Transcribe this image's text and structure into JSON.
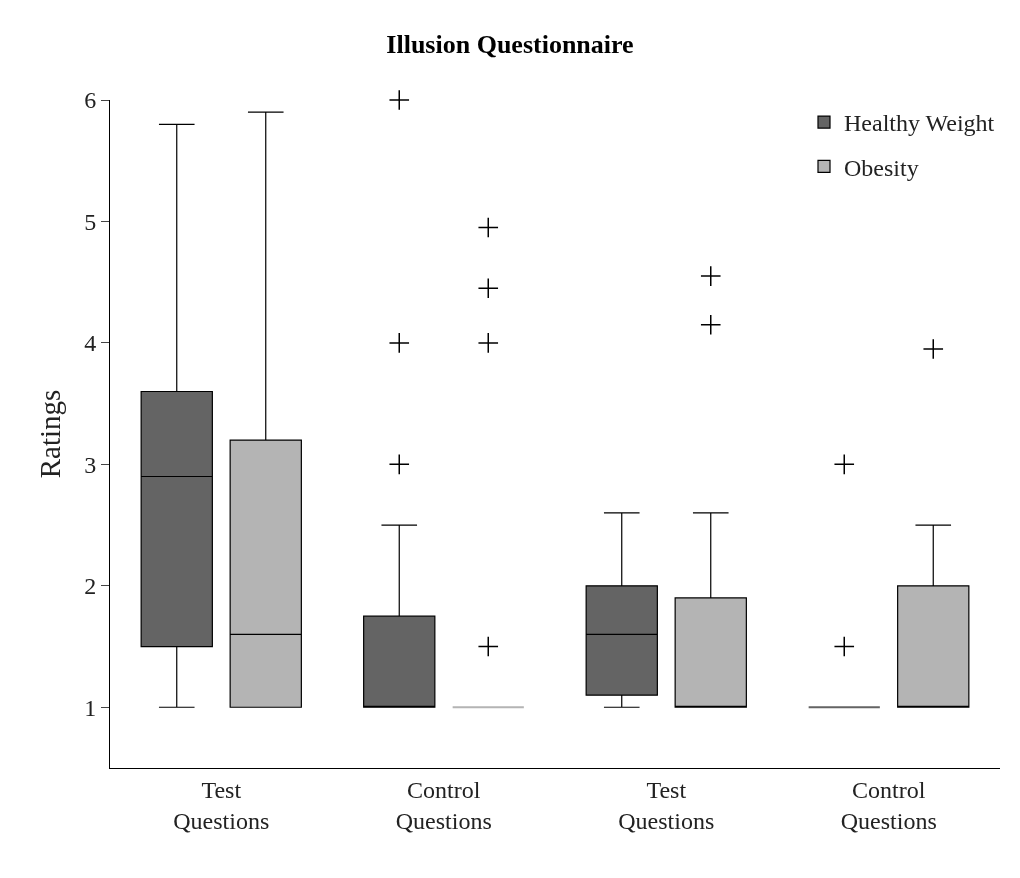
{
  "chart_data": {
    "type": "box",
    "title": "Illusion Questionnaire",
    "ylabel": "Ratings",
    "categories": [
      "Test\nQuestions",
      "Control\nQuestions",
      "Test\nQuestions",
      "Control\nQuestions"
    ],
    "ylim": [
      0.5,
      6
    ],
    "yticks": [
      1,
      2,
      3,
      4,
      5,
      6
    ],
    "legend": "top right",
    "marker": "cross",
    "series": [
      {
        "name": "Healthy Weight",
        "color": "#646464",
        "boxes": [
          {
            "low": 1,
            "q1": 1.5,
            "median": 2.9,
            "q3": 3.6,
            "high": 5.8
          },
          {
            "low": 1,
            "q1": 1,
            "median": 1,
            "q3": 1.75,
            "high": 2.5,
            "outliers": [
              3,
              4,
              6
            ]
          },
          {
            "low": 1,
            "q1": 1.1,
            "median": 1.6,
            "q3": 2,
            "high": 2.6
          },
          {
            "low": 1,
            "q1": 1,
            "median": 1,
            "q3": 1,
            "high": 1,
            "outliers": [
              1.5,
              3
            ]
          }
        ]
      },
      {
        "name": "Obesity",
        "color": "#b4b4b4",
        "boxes": [
          {
            "low": 1,
            "q1": 1,
            "median": 1.6,
            "q3": 3.2,
            "high": 5.9
          },
          {
            "low": 1,
            "q1": 1,
            "median": 1,
            "q3": 1,
            "high": 1,
            "outliers": [
              1.5,
              4,
              4.45,
              4.95
            ]
          },
          {
            "low": 1,
            "q1": 1,
            "median": 1,
            "q3": 1.9,
            "high": 2.6,
            "outliers": [
              4.15,
              4.55
            ]
          },
          {
            "low": 1,
            "q1": 1,
            "median": 1,
            "q3": 2,
            "high": 2.5,
            "outliers": [
              3.95
            ]
          }
        ]
      }
    ]
  }
}
